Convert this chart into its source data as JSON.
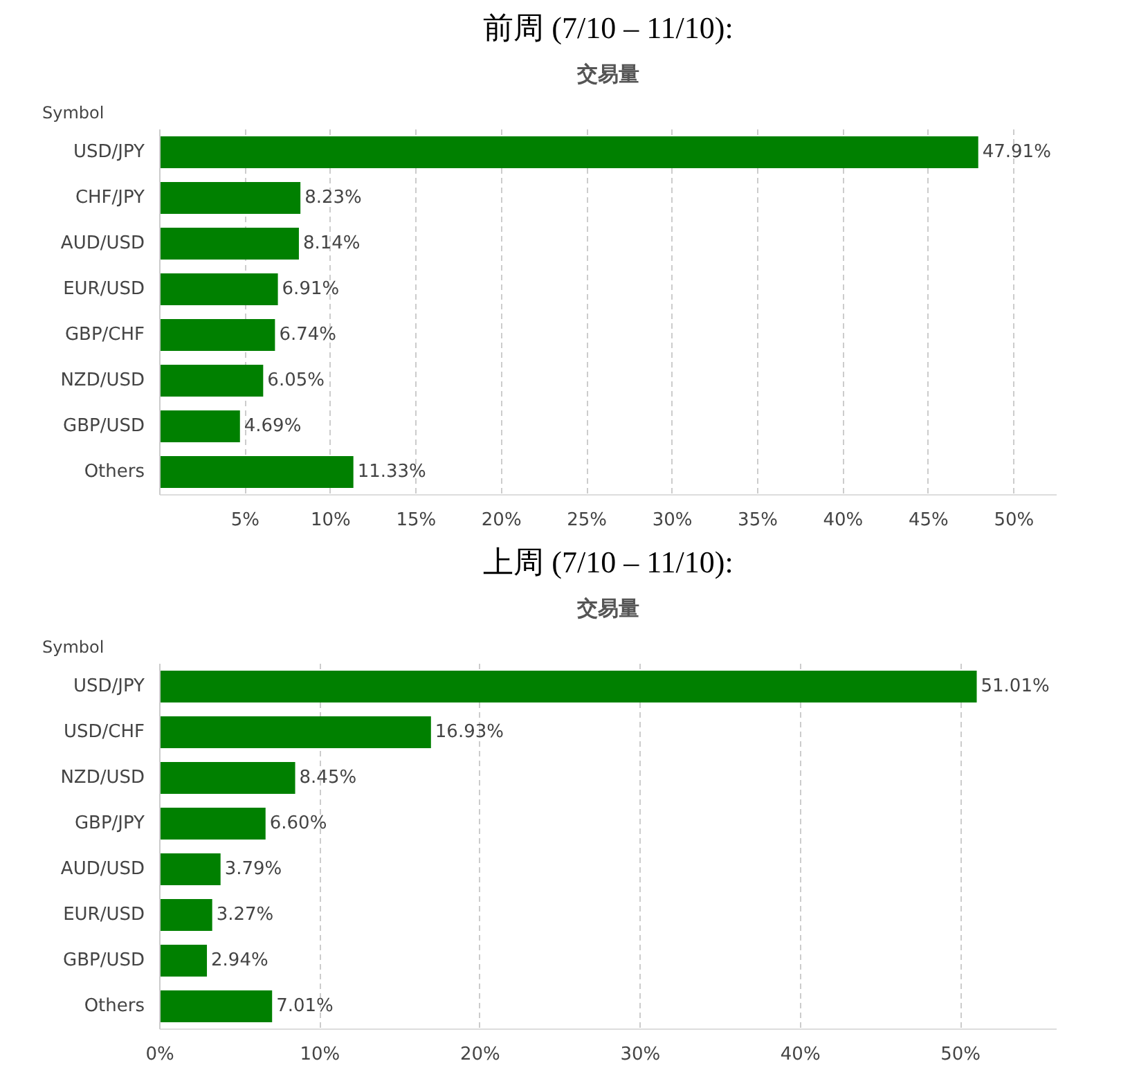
{
  "chart_data": [
    {
      "type": "bar",
      "orientation": "horizontal",
      "title": "前周 (7/10 – 11/10):",
      "subtitle": "交易量",
      "ylabel": "Symbol",
      "categories": [
        "USD/JPY",
        "CHF/JPY",
        "AUD/USD",
        "EUR/USD",
        "GBP/CHF",
        "NZD/USD",
        "GBP/USD",
        "Others"
      ],
      "values": [
        47.91,
        8.23,
        8.14,
        6.91,
        6.74,
        6.05,
        4.69,
        11.33
      ],
      "value_labels": [
        "47.91%",
        "8.23%",
        "8.14%",
        "6.91%",
        "6.74%",
        "6.05%",
        "4.69%",
        "11.33%"
      ],
      "color": "#008000",
      "xlim": [
        0,
        52.5
      ],
      "xticks": [
        {
          "value": 5,
          "label": "5%"
        },
        {
          "value": 10,
          "label": "10%"
        },
        {
          "value": 15,
          "label": "15%"
        },
        {
          "value": 20,
          "label": "20%"
        },
        {
          "value": 25,
          "label": "25%"
        },
        {
          "value": 30,
          "label": "30%"
        },
        {
          "value": 35,
          "label": "35%"
        },
        {
          "value": 40,
          "label": "40%"
        },
        {
          "value": 45,
          "label": "45%"
        },
        {
          "value": 50,
          "label": "50%"
        }
      ],
      "grid": "x"
    },
    {
      "type": "bar",
      "orientation": "horizontal",
      "title": "上周 (7/10 – 11/10):",
      "subtitle": "交易量",
      "ylabel": "Symbol",
      "categories": [
        "USD/JPY",
        "USD/CHF",
        "NZD/USD",
        "GBP/JPY",
        "AUD/USD",
        "EUR/USD",
        "GBP/USD",
        "Others"
      ],
      "values": [
        51.01,
        16.93,
        8.45,
        6.6,
        3.79,
        3.27,
        2.94,
        7.01
      ],
      "value_labels": [
        "51.01%",
        "16.93%",
        "8.45%",
        "6.60%",
        "3.79%",
        "3.27%",
        "2.94%",
        "7.01%"
      ],
      "color": "#008000",
      "xlim": [
        0,
        56
      ],
      "xticks": [
        {
          "value": 0,
          "label": "0%"
        },
        {
          "value": 10,
          "label": "10%"
        },
        {
          "value": 20,
          "label": "20%"
        },
        {
          "value": 30,
          "label": "30%"
        },
        {
          "value": 40,
          "label": "40%"
        },
        {
          "value": 50,
          "label": "50%"
        }
      ],
      "grid": "x"
    }
  ]
}
